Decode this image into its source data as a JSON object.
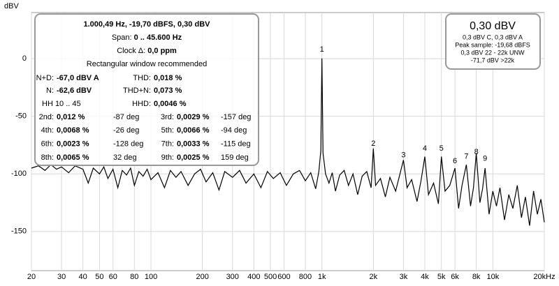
{
  "chart_data": {
    "type": "line",
    "xscale": "log",
    "ylabel": "dBV",
    "grid": true,
    "xlim": [
      20,
      20000
    ],
    "ylim": [
      -184,
      40
    ],
    "xticks": [
      20,
      30,
      40,
      50,
      60,
      80,
      100,
      200,
      300,
      400,
      500,
      600,
      800,
      {
        "value": 1000,
        "label": "1k"
      },
      {
        "value": 2000,
        "label": "2k"
      },
      {
        "value": 3000,
        "label": "3k"
      },
      {
        "value": 4000,
        "label": "4k"
      },
      {
        "value": 5000,
        "label": "5k"
      },
      {
        "value": 6000,
        "label": "6k"
      },
      {
        "value": 8000,
        "label": "8k"
      },
      {
        "value": 10000,
        "label": "10k"
      },
      {
        "value": 20000,
        "label": "20kHz"
      }
    ],
    "yticks": [
      0,
      -50,
      -100,
      -150
    ],
    "x": [
      20,
      22,
      24,
      26,
      28,
      30,
      33,
      36,
      40,
      43,
      46,
      50,
      53,
      56,
      60,
      64,
      68,
      72,
      76,
      80,
      85,
      90,
      95,
      100,
      110,
      120,
      130,
      140,
      150,
      165,
      180,
      195,
      210,
      230,
      250,
      270,
      300,
      330,
      360,
      400,
      440,
      480,
      520,
      570,
      620,
      680,
      740,
      800,
      860,
      920,
      960,
      985,
      1000,
      1015,
      1050,
      1100,
      1150,
      1200,
      1270,
      1350,
      1430,
      1520,
      1620,
      1720,
      1830,
      1940,
      2000,
      2060,
      2200,
      2350,
      2500,
      2700,
      3000,
      3150,
      3350,
      3600,
      3800,
      4000,
      4200,
      4500,
      4800,
      5000,
      5250,
      5600,
      6000,
      6300,
      6600,
      7000,
      7400,
      7700,
      8000,
      8400,
      8700,
      9000,
      9500,
      10000,
      10500,
      11000,
      11700,
      12400,
      13100,
      13900,
      14700,
      15500,
      16400,
      17300,
      18200,
      19100,
      20000
    ],
    "series": [
      {
        "color": "#000000",
        "values": [
          -95,
          -93,
          -97,
          -92,
          -96,
          -94,
          -99,
          -93,
          -96,
          -108,
          -95,
          -100,
          -94,
          -104,
          -96,
          -112,
          -97,
          -101,
          -95,
          -110,
          -98,
          -102,
          -96,
          -105,
          -99,
          -112,
          -97,
          -103,
          -98,
          -110,
          -100,
          -96,
          -107,
          -99,
          -114,
          -98,
          -103,
          -97,
          -108,
          -100,
          -112,
          -98,
          -104,
          -99,
          -110,
          -100,
          -97,
          -106,
          -99,
          -113,
          -98,
          -80,
          0.3,
          -82,
          -100,
          -108,
          -99,
          -115,
          -101,
          -97,
          -110,
          -100,
          -118,
          -102,
          -98,
          -112,
          -78,
          -110,
          -104,
          -120,
          -103,
          -115,
          -88,
          -112,
          -105,
          -124,
          -106,
          -85,
          -118,
          -108,
          -126,
          -85,
          -115,
          -110,
          -95,
          -130,
          -110,
          -92,
          -128,
          -112,
          -82,
          -125,
          -113,
          -95,
          -135,
          -115,
          -128,
          -112,
          -140,
          -118,
          -130,
          -110,
          -138,
          -120,
          -145,
          -115,
          -135,
          -122,
          -142
        ]
      }
    ],
    "annotations": [
      {
        "text": "1",
        "x": 1000,
        "y": 8
      },
      {
        "text": "2",
        "x": 2000,
        "y": -74
      },
      {
        "text": "3",
        "x": 3000,
        "y": -84
      },
      {
        "text": "4",
        "x": 4000,
        "y": -78
      },
      {
        "text": "5",
        "x": 5000,
        "y": -78
      },
      {
        "text": "6",
        "x": 6000,
        "y": -89
      },
      {
        "text": "7",
        "x": 7000,
        "y": -85
      },
      {
        "text": "8",
        "x": 8000,
        "y": -81
      },
      {
        "text": "9",
        "x": 9000,
        "y": -87
      }
    ],
    "info_box": {
      "header": "1.000,49 Hz, -19,70 dBFS, 0,30 dBV",
      "span": [
        "Span:",
        "0 .. 45.600 Hz"
      ],
      "clock": [
        "Clock Δ:",
        "0,0 ppm"
      ],
      "note": "Rectangular window recommended",
      "summary": [
        [
          "N+D:",
          "-67,0 dBV A",
          "THD:",
          "0,018 %"
        ],
        [
          "N:",
          "-62,6 dBV",
          "THD+N:",
          "0,073 %"
        ]
      ],
      "hh_range": "HH 10 .. 45",
      "hhd": [
        "HHD:",
        "0,0046 %"
      ],
      "harmonics": [
        [
          "2nd:",
          "0,012 %",
          "-87 deg",
          "3rd:",
          "0,0029 %",
          "-157 deg"
        ],
        [
          "4th:",
          "0,0068 %",
          "-26 deg",
          "5th:",
          "0,0066 %",
          "-94 deg"
        ],
        [
          "6th:",
          "0,0023 %",
          "-128 deg",
          "7th:",
          "0,0033 %",
          "-115 deg"
        ],
        [
          "8th:",
          "0,0065 %",
          "32 deg",
          "9th:",
          "0,0025 %",
          "159 deg"
        ]
      ]
    },
    "level_box": {
      "level": "0,30 dBV",
      "lines": [
        "0,3 dBV C, 0,3 dBV A",
        "Peak sample: -19,68 dBFS",
        "0,3 dBV 22 - 22k UNW",
        "-71,7 dBV >22k"
      ]
    }
  }
}
